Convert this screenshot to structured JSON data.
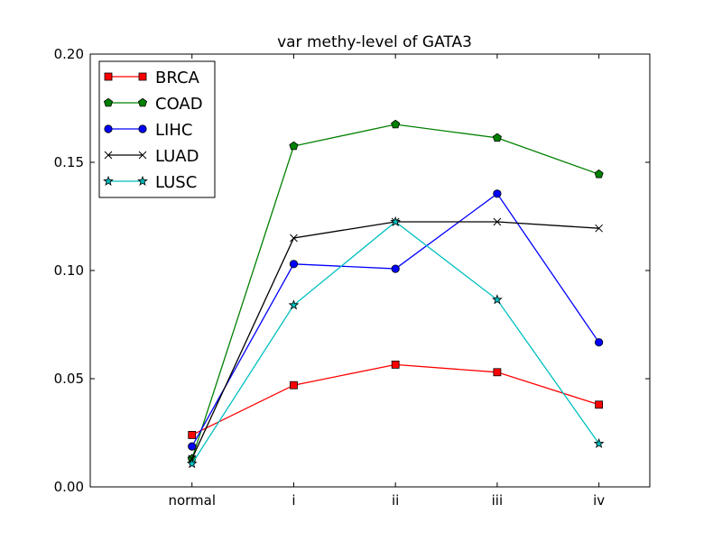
{
  "chart_data": {
    "type": "line",
    "title": "var methy-level of GATA3",
    "xlabel": "",
    "ylabel": "",
    "categories": [
      "normal",
      "i",
      "ii",
      "iii",
      "iv"
    ],
    "xlim": [
      -1,
      4.5
    ],
    "ylim": [
      0.0,
      0.2
    ],
    "yticks": [
      0.0,
      0.05,
      0.1,
      0.15,
      0.2
    ],
    "ytick_labels": [
      "0.00",
      "0.05",
      "0.10",
      "0.15",
      "0.20"
    ],
    "grid": false,
    "legend_position": "top-left",
    "series": [
      {
        "name": "BRCA",
        "color": "#ff0000",
        "marker": "square",
        "values": [
          0.024,
          0.047,
          0.0565,
          0.053,
          0.038
        ]
      },
      {
        "name": "COAD",
        "color": "#008000",
        "marker": "pentagon",
        "values": [
          0.013,
          0.1575,
          0.1675,
          0.1613,
          0.1445
        ]
      },
      {
        "name": "LIHC",
        "color": "#0000ff",
        "marker": "circle",
        "values": [
          0.0187,
          0.103,
          0.1008,
          0.1355,
          0.0668
        ]
      },
      {
        "name": "LUAD",
        "color": "#000000",
        "marker": "x",
        "values": [
          0.013,
          0.115,
          0.1225,
          0.1225,
          0.1195
        ]
      },
      {
        "name": "LUSC",
        "color": "#00bfbf",
        "marker": "star",
        "values": [
          0.0107,
          0.084,
          0.1225,
          0.0865,
          0.02
        ]
      }
    ]
  }
}
